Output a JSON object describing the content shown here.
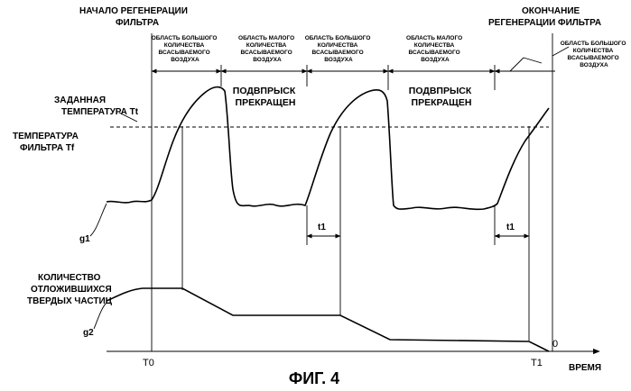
{
  "labels": {
    "regen_start": [
      "НАЧАЛО РЕГЕНЕРАЦИИ",
      "ФИЛЬТРА"
    ],
    "regen_end": [
      "ОКОНЧАНИЕ",
      "РЕГЕНЕРАЦИИ ФИЛЬТРА"
    ],
    "target_temp": [
      "ЗАДАННАЯ",
      "ТЕМПЕРАТУРА Tt"
    ],
    "filter_temp": [
      "ТЕМПЕРАТУРА",
      "ФИЛЬТРА Tf"
    ],
    "particles": [
      "КОЛИЧЕСТВО",
      "ОТЛОЖИВШИХСЯ",
      "ТВЕРДЫХ ЧАСТИЦ"
    ],
    "g1": "g1",
    "g2": "g2",
    "t1": "t1",
    "t0": "T0",
    "t_end": "T1",
    "zero": "0",
    "time_axis": "ВРЕМЯ",
    "caption": "ФИГ. 4"
  },
  "regions": {
    "large_intake": [
      "ОБЛАСТЬ БОЛЬШОГО",
      "КОЛИЧЕСТВА",
      "ВСАСЫВАЕМОГО",
      "ВОЗДУХА"
    ],
    "small_intake": [
      "ОБЛАСТЬ МАЛОГО",
      "КОЛИЧЕСТВА",
      "ВСАСЫВАЕМОГО",
      "ВОЗДУХА"
    ],
    "injection_stopped": [
      "ПОДВПРЫСК",
      "ПРЕКРАЩЕН"
    ]
  }
}
